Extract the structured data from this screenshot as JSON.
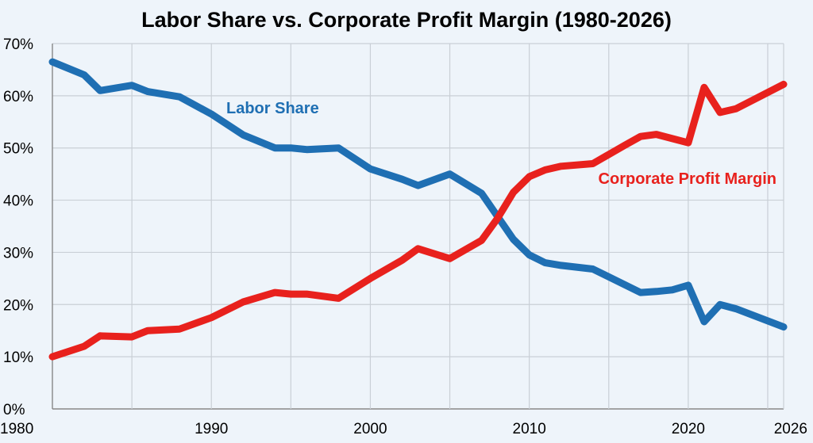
{
  "chart_data": {
    "type": "line",
    "title": "Labor Share vs. Corporate Profit Margin (1980-2026)",
    "xlabel": "",
    "ylabel": "",
    "xlim": [
      1980,
      2026
    ],
    "ylim": [
      0,
      70
    ],
    "grid": true,
    "x_ticks": [
      1980,
      1990,
      2000,
      2010,
      2020,
      2026
    ],
    "x_tick_labels": [
      "1980",
      "1990",
      "2000",
      "2010",
      "2020",
      "2026"
    ],
    "y_ticks": [
      0,
      10,
      20,
      30,
      40,
      50,
      60,
      70
    ],
    "y_tick_labels": [
      "0%",
      "10%",
      "20%",
      "30%",
      "40%",
      "50%",
      "60%",
      "70%"
    ],
    "series": [
      {
        "name": "Labor Share",
        "label": "Labor Share",
        "color": "#1f6fb3",
        "x": [
          1980,
          1982,
          1983,
          1985,
          1986,
          1988,
          1990,
          1992,
          1994,
          1995,
          1996,
          1998,
          2000,
          2002,
          2003,
          2005,
          2007,
          2009,
          2010,
          2011,
          2012,
          2014,
          2017,
          2018,
          2019,
          2020,
          2021,
          2022,
          2023,
          2026
        ],
        "values": [
          66.5,
          64,
          61,
          62,
          60.8,
          59.8,
          56.5,
          52.5,
          50,
          50,
          49.7,
          50,
          46,
          44,
          42.8,
          45,
          41.3,
          32.5,
          29.5,
          28,
          27.5,
          26.8,
          22.3,
          22.5,
          22.8,
          23.7,
          16.7,
          20,
          19.2,
          15.7
        ]
      },
      {
        "name": "Corporate Profit Margin",
        "label": "Corporate Profit Margin",
        "color": "#e8211d",
        "x": [
          1980,
          1982,
          1983,
          1985,
          1986,
          1988,
          1990,
          1992,
          1994,
          1995,
          1996,
          1998,
          2000,
          2002,
          2003,
          2005,
          2007,
          2008,
          2009,
          2010,
          2011,
          2012,
          2014,
          2016,
          2017,
          2018,
          2019,
          2020,
          2021,
          2022,
          2023,
          2026
        ],
        "values": [
          10,
          12,
          14,
          13.8,
          15,
          15.3,
          17.5,
          20.5,
          22.3,
          22,
          22,
          21.2,
          25,
          28.5,
          30.7,
          28.8,
          32.3,
          36.5,
          41.5,
          44.5,
          45.8,
          46.5,
          47,
          50.5,
          52.2,
          52.6,
          51.8,
          51,
          61.6,
          56.8,
          57.5,
          62.2
        ]
      }
    ]
  }
}
